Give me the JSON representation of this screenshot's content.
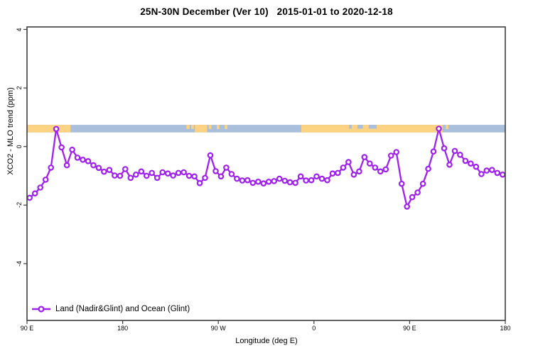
{
  "title": "25N-30N December (Ver 10)   2015-01-01 to 2020-12-18",
  "axes": {
    "x_label": "Longitude (deg E)",
    "y_label": "XCO2 - MLO trend (ppm)",
    "x_ticks": [
      {
        "lon": 90,
        "label": "90 E"
      },
      {
        "lon": 180,
        "label": "180"
      },
      {
        "lon": 270,
        "label": "90 W"
      },
      {
        "lon": 360,
        "label": "0"
      },
      {
        "lon": 450,
        "label": "90 E"
      },
      {
        "lon": 540,
        "label": "180"
      }
    ],
    "y_ticks": [
      {
        "value": 4,
        "label": "4"
      },
      {
        "value": 2,
        "label": "2"
      },
      {
        "value": 0,
        "label": "0"
      },
      {
        "value": -2,
        "label": "-2"
      },
      {
        "value": -4,
        "label": "-4"
      }
    ]
  },
  "legend": {
    "label": "Land (Nadir&Glint) and Ocean (Glint)"
  },
  "colors": {
    "line": "#a020f0",
    "marker_fill": "#ffffff",
    "land": "#fbd382",
    "ocean": "#a9bfdb",
    "frame": "#3d3d3d"
  },
  "chart_data": {
    "type": "line",
    "title": "25N-30N December (Ver 10)   2015-01-01 to 2020-12-18",
    "xlabel": "Longitude (deg E)",
    "ylabel": "XCO2 - MLO trend (ppm)",
    "xlim": [
      90,
      540
    ],
    "ylim": [
      -5.9,
      4.1
    ],
    "grid": false,
    "legend_position": "bottom-left",
    "series_name": "Land (Nadir&Glint) and Ocean (Glint)",
    "marker": "open-circle",
    "x": [
      92.5,
      97.5,
      102.5,
      107.5,
      112.5,
      117.5,
      122.5,
      127.5,
      132.5,
      137.5,
      142.5,
      147.5,
      152.5,
      157.5,
      162.5,
      167.5,
      172.5,
      177.5,
      182.5,
      187.5,
      192.5,
      197.5,
      202.5,
      207.5,
      212.5,
      217.5,
      222.5,
      227.5,
      232.5,
      237.5,
      242.5,
      247.5,
      252.5,
      257.5,
      262.5,
      267.5,
      272.5,
      277.5,
      282.5,
      287.5,
      292.5,
      297.5,
      302.5,
      307.5,
      312.5,
      317.5,
      322.5,
      327.5,
      332.5,
      337.5,
      342.5,
      347.5,
      352.5,
      357.5,
      362.5,
      367.5,
      372.5,
      377.5,
      382.5,
      387.5,
      392.5,
      397.5,
      402.5,
      407.5,
      412.5,
      417.5,
      422.5,
      427.5,
      432.5,
      437.5,
      442.5,
      447.5,
      452.5,
      457.5,
      462.5,
      467.5,
      472.5,
      477.5,
      482.5,
      487.5,
      492.5,
      497.5,
      502.5,
      507.5,
      512.5,
      517.5,
      522.5,
      527.5,
      532.5,
      537.5
    ],
    "values": [
      -1.75,
      -1.6,
      -1.4,
      -1.13,
      -0.72,
      0.6,
      -0.03,
      -0.64,
      -0.11,
      -0.38,
      -0.45,
      -0.5,
      -0.64,
      -0.73,
      -0.86,
      -0.8,
      -0.99,
      -1.0,
      -0.77,
      -1.07,
      -0.96,
      -0.85,
      -1.0,
      -0.9,
      -1.07,
      -0.88,
      -0.92,
      -0.99,
      -0.9,
      -0.88,
      -1.0,
      -1.02,
      -1.25,
      -1.07,
      -0.3,
      -0.84,
      -1.02,
      -0.72,
      -0.94,
      -1.1,
      -1.16,
      -1.15,
      -1.24,
      -1.2,
      -1.26,
      -1.2,
      -1.18,
      -1.1,
      -1.17,
      -1.22,
      -1.24,
      -1.02,
      -1.16,
      -1.15,
      -1.02,
      -1.1,
      -1.15,
      -0.92,
      -0.9,
      -0.72,
      -0.53,
      -0.96,
      -0.85,
      -0.36,
      -0.58,
      -0.72,
      -0.85,
      -0.78,
      -0.31,
      -0.19,
      -1.27,
      -2.05,
      -1.73,
      -1.57,
      -1.27,
      -0.76,
      -0.17,
      0.61,
      -0.06,
      -0.62,
      -0.15,
      -0.28,
      -0.49,
      -0.58,
      -0.69,
      -0.94,
      -0.82,
      -0.8,
      -0.9,
      -0.96
    ],
    "map_band": {
      "description": "land/ocean strip along 25N-30N",
      "value_top": 0.74,
      "value_bottom": 0.48,
      "land_segments": [
        [
          90,
          131
        ],
        [
          248,
          259.5
        ],
        [
          348,
          481
        ]
      ],
      "land_chips": [
        [
          240,
          243
        ],
        [
          244.5,
          247
        ],
        [
          261,
          263.5
        ],
        [
          268.5,
          271
        ],
        [
          276,
          278.5
        ],
        [
          484,
          486.5
        ]
      ],
      "ocean_chips": [
        [
          393,
          395.5
        ],
        [
          401,
          406
        ],
        [
          411.5,
          419
        ]
      ]
    }
  }
}
